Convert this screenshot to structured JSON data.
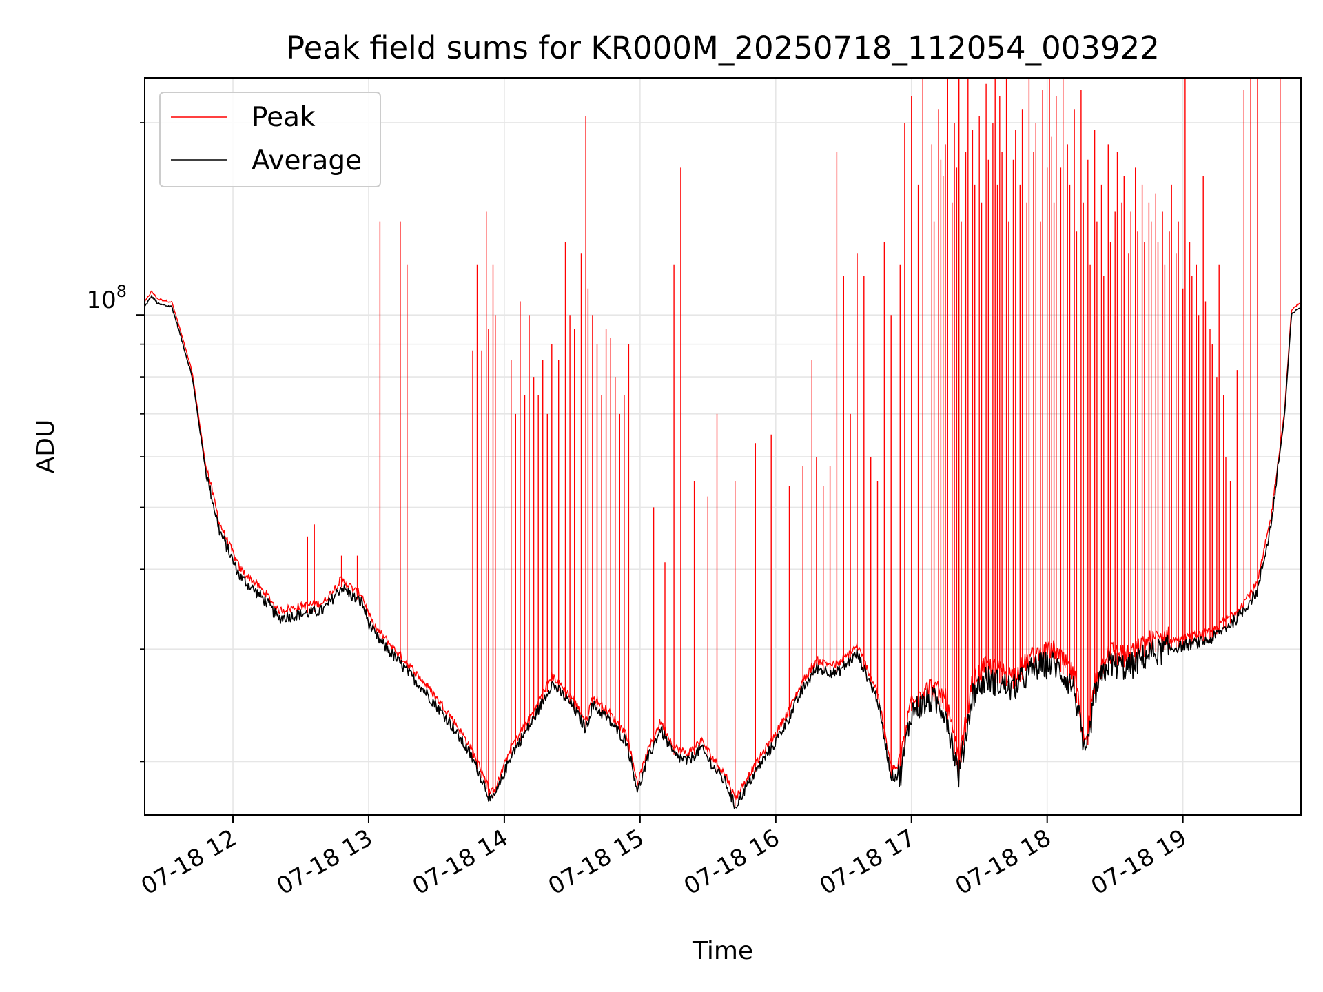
{
  "chart_data": {
    "type": "line",
    "title": "Peak field sums for KR000M_20250718_112054_003922",
    "xlabel": "Time",
    "ylabel": "ADU",
    "yscale": "log",
    "ylim": [
      16500000,
      235000000
    ],
    "xlim_hours": [
      11.35,
      19.87
    ],
    "grid": true,
    "legend_position": "upper-left",
    "x_tick_labels": [
      "07-18 12",
      "07-18 13",
      "07-18 14",
      "07-18 15",
      "07-18 16",
      "07-18 17",
      "07-18 18",
      "07-18 19"
    ],
    "x_tick_hours": [
      12,
      13,
      14,
      15,
      16,
      17,
      18,
      19
    ],
    "y_tick_labels": [
      {
        "base": "10",
        "exp": "8",
        "value": 100000000
      }
    ],
    "y_minor_ticks": [
      20000000,
      30000000,
      40000000,
      50000000,
      60000000,
      70000000,
      80000000,
      90000000,
      200000000
    ],
    "series": [
      {
        "name": "Average",
        "color": "#000000",
        "baseline_time": [
          "11:21",
          "11:24",
          "11:27",
          "11:33",
          "11:36",
          "11:42",
          "11:48",
          "11:54",
          "12:03",
          "12:15",
          "12:20",
          "12:30",
          "12:40",
          "12:48",
          "12:54",
          "12:57",
          "13:00",
          "13:03",
          "13:12",
          "13:24",
          "13:36",
          "13:45",
          "13:51",
          "13:54",
          "13:57",
          "14:03",
          "14:12",
          "14:21",
          "14:30",
          "14:36",
          "14:39",
          "14:45",
          "14:54",
          "14:59",
          "15:03",
          "15:09",
          "15:15",
          "15:21",
          "15:27",
          "15:33",
          "15:38",
          "15:42",
          "15:48",
          "15:54",
          "16:00",
          "16:06",
          "16:12",
          "16:18",
          "16:27",
          "16:36",
          "16:45",
          "16:51",
          "16:55",
          "17:00",
          "17:09",
          "17:15",
          "17:21",
          "17:27",
          "17:33",
          "17:45",
          "17:54",
          "18:03",
          "18:12",
          "18:17",
          "18:21",
          "18:27",
          "18:36",
          "18:45",
          "18:54",
          "19:03",
          "19:12",
          "19:24",
          "19:33",
          "19:39",
          "19:45",
          "19:48",
          "19:52"
        ],
        "baseline_values": [
          103000000,
          107000000,
          104000000,
          103000000,
          95000000,
          80000000,
          57000000,
          46000000,
          39000000,
          35500000,
          33500000,
          34000000,
          34500000,
          37500000,
          36000000,
          35500000,
          33000000,
          31500000,
          29000000,
          26000000,
          23000000,
          20500000,
          18500000,
          17300000,
          18000000,
          20500000,
          23000000,
          26500000,
          24500000,
          22500000,
          24500000,
          23500000,
          21500000,
          18000000,
          20000000,
          22500000,
          20500000,
          20000000,
          21000000,
          19500000,
          18500000,
          17000000,
          18500000,
          20000000,
          21500000,
          23500000,
          26000000,
          28000000,
          27500000,
          29500000,
          25000000,
          19000000,
          19000000,
          24000000,
          25000000,
          24000000,
          19000000,
          25500000,
          27000000,
          26000000,
          28000000,
          28500000,
          26000000,
          20000000,
          25500000,
          28500000,
          28000000,
          29500000,
          30000000,
          30500000,
          31000000,
          33500000,
          37000000,
          47000000,
          70000000,
          100000000,
          103000000
        ]
      },
      {
        "name": "Peak",
        "color": "#ff0000",
        "spike_time": [
          "12:33",
          "12:36",
          "12:48",
          "12:55",
          "13:05",
          "13:14",
          "13:17",
          "13:46",
          "13:48",
          "13:50",
          "13:52",
          "13:53",
          "13:55",
          "13:56",
          "14:03",
          "14:05",
          "14:07",
          "14:09",
          "14:11",
          "14:13",
          "14:15",
          "14:17",
          "14:19",
          "14:21",
          "14:24",
          "14:27",
          "14:29",
          "14:31",
          "14:34",
          "14:36",
          "14:37",
          "14:39",
          "14:41",
          "14:43",
          "14:45",
          "14:47",
          "14:49",
          "14:51",
          "14:53",
          "14:55",
          "15:06",
          "15:11",
          "15:15",
          "15:18",
          "15:24",
          "15:30",
          "15:34",
          "15:42",
          "15:51",
          "15:58",
          "16:06",
          "16:12",
          "16:16",
          "16:18",
          "16:21",
          "16:24",
          "16:27",
          "16:30",
          "16:33",
          "16:36",
          "16:39",
          "16:42",
          "16:45",
          "16:48",
          "16:51",
          "16:55",
          "16:57",
          "17:00",
          "17:03",
          "17:05",
          "17:09",
          "17:10",
          "17:12",
          "17:13",
          "17:14",
          "17:15",
          "17:16",
          "17:18",
          "17:19",
          "17:20",
          "17:21",
          "17:22",
          "17:24",
          "17:25",
          "17:27",
          "17:28",
          "17:30",
          "17:31",
          "17:33",
          "17:34",
          "17:36",
          "17:37",
          "17:38",
          "17:39",
          "17:40",
          "17:42",
          "17:43",
          "17:45",
          "17:46",
          "17:48",
          "17:49",
          "17:51",
          "17:52",
          "17:54",
          "17:55",
          "17:57",
          "17:58",
          "18:00",
          "18:01",
          "18:02",
          "18:03",
          "18:04",
          "18:06",
          "18:07",
          "18:09",
          "18:10",
          "18:12",
          "18:13",
          "18:15",
          "18:16",
          "18:18",
          "18:19",
          "18:21",
          "18:22",
          "18:24",
          "18:25",
          "18:27",
          "18:28",
          "18:30",
          "18:31",
          "18:33",
          "18:34",
          "18:36",
          "18:37",
          "18:39",
          "18:40",
          "18:42",
          "18:43",
          "18:45",
          "18:46",
          "18:48",
          "18:49",
          "18:51",
          "18:52",
          "18:54",
          "18:55",
          "18:57",
          "18:58",
          "19:00",
          "19:01",
          "19:03",
          "19:04",
          "19:06",
          "19:07",
          "19:09",
          "19:10",
          "19:12",
          "19:13",
          "19:15",
          "19:16",
          "19:18",
          "19:19",
          "19:21",
          "19:24",
          "19:27",
          "19:30",
          "19:33",
          "19:43"
        ],
        "spike_values": [
          45000000,
          47000000,
          42000000,
          42000000,
          140000000,
          140000000,
          120000000,
          88000000,
          120000000,
          88000000,
          145000000,
          95000000,
          120000000,
          100000000,
          85000000,
          70000000,
          105000000,
          75000000,
          100000000,
          80000000,
          75000000,
          85000000,
          70000000,
          90000000,
          85000000,
          130000000,
          100000000,
          95000000,
          125000000,
          205000000,
          110000000,
          100000000,
          90000000,
          75000000,
          95000000,
          92000000,
          80000000,
          70000000,
          75000000,
          90000000,
          50000000,
          41000000,
          120000000,
          170000000,
          55000000,
          52000000,
          70000000,
          55000000,
          63000000,
          65000000,
          54000000,
          58000000,
          85000000,
          60000000,
          54000000,
          58000000,
          180000000,
          115000000,
          70000000,
          125000000,
          115000000,
          60000000,
          55000000,
          130000000,
          100000000,
          120000000,
          200000000,
          220000000,
          160000000,
          235000000,
          185000000,
          140000000,
          210000000,
          175000000,
          165000000,
          185000000,
          235000000,
          150000000,
          200000000,
          170000000,
          235000000,
          140000000,
          180000000,
          235000000,
          195000000,
          160000000,
          205000000,
          150000000,
          230000000,
          175000000,
          200000000,
          235000000,
          160000000,
          220000000,
          180000000,
          235000000,
          140000000,
          175000000,
          195000000,
          160000000,
          210000000,
          150000000,
          235000000,
          180000000,
          200000000,
          140000000,
          225000000,
          170000000,
          235000000,
          190000000,
          150000000,
          220000000,
          170000000,
          235000000,
          185000000,
          160000000,
          210000000,
          135000000,
          225000000,
          150000000,
          175000000,
          120000000,
          195000000,
          140000000,
          160000000,
          115000000,
          185000000,
          130000000,
          145000000,
          180000000,
          150000000,
          165000000,
          125000000,
          145000000,
          170000000,
          135000000,
          160000000,
          130000000,
          150000000,
          140000000,
          155000000,
          130000000,
          145000000,
          120000000,
          135000000,
          160000000,
          125000000,
          140000000,
          110000000,
          235000000,
          130000000,
          115000000,
          120000000,
          100000000,
          165000000,
          105000000,
          95000000,
          90000000,
          80000000,
          120000000,
          75000000,
          60000000,
          55000000,
          82000000,
          225000000,
          235000000
        ]
      }
    ]
  }
}
